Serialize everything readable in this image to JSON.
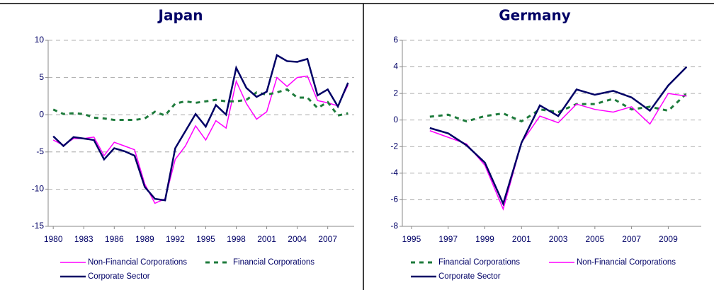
{
  "chart_data": [
    {
      "type": "line",
      "title": "Japan",
      "x": [
        1980,
        1981,
        1982,
        1983,
        1984,
        1985,
        1986,
        1987,
        1988,
        1989,
        1990,
        1991,
        1992,
        1993,
        1994,
        1995,
        1996,
        1997,
        1998,
        1999,
        2000,
        2001,
        2002,
        2003,
        2004,
        2005,
        2006,
        2007,
        2008,
        2009
      ],
      "series": [
        {
          "name": "Non-Financial Corporations",
          "color": "#ff00ff",
          "line_style": "solid",
          "values": [
            -3.4,
            -4.1,
            -3.2,
            -3.2,
            -3.0,
            -5.5,
            -3.7,
            -4.2,
            -4.7,
            -9.3,
            -11.9,
            -11.3,
            -6.0,
            -4.2,
            -1.5,
            -3.4,
            -0.8,
            -1.8,
            4.5,
            1.5,
            -0.6,
            0.4,
            5.0,
            3.8,
            5.0,
            5.2,
            1.9,
            1.6,
            1.2,
            4.0
          ]
        },
        {
          "name": "Financial Corporations",
          "color": "#1e7b3c",
          "line_style": "dashed",
          "values": [
            0.7,
            0.1,
            0.2,
            0.1,
            -0.4,
            -0.5,
            -0.7,
            -0.7,
            -0.7,
            -0.5,
            0.4,
            -0.1,
            1.5,
            1.8,
            1.6,
            1.8,
            2.0,
            1.8,
            1.8,
            2.0,
            3.0,
            2.7,
            3.0,
            3.4,
            2.3,
            2.3,
            0.9,
            1.7,
            -0.1,
            0.2
          ]
        },
        {
          "name": "Corporate Sector",
          "color": "#000066",
          "line_style": "solid",
          "values": [
            -2.9,
            -4.2,
            -3.0,
            -3.2,
            -3.4,
            -6.0,
            -4.5,
            -4.9,
            -5.5,
            -9.7,
            -11.3,
            -11.5,
            -4.5,
            -2.2,
            0.1,
            -1.6,
            1.3,
            0.0,
            6.3,
            3.6,
            2.4,
            3.1,
            8.0,
            7.2,
            7.1,
            7.5,
            2.6,
            3.4,
            1.1,
            4.3
          ]
        }
      ],
      "xlim": [
        1979.5,
        2009.6
      ],
      "xticks": [
        1980,
        1983,
        1986,
        1989,
        1992,
        1995,
        1998,
        2001,
        2004,
        2007
      ],
      "ylim": [
        -15,
        10
      ],
      "yticks": [
        -15,
        -10,
        -5,
        0,
        5,
        10
      ],
      "grid": true
    },
    {
      "type": "line",
      "title": "Germany",
      "x": [
        1996,
        1997,
        1998,
        1999,
        2000,
        2001,
        2002,
        2003,
        2004,
        2005,
        2006,
        2007,
        2008,
        2009,
        2010
      ],
      "series": [
        {
          "name": "Financial Corporations",
          "color": "#1e7b3c",
          "line_style": "dashed",
          "values": [
            0.25,
            0.4,
            -0.1,
            0.3,
            0.5,
            -0.1,
            0.8,
            0.6,
            1.2,
            1.2,
            1.6,
            0.8,
            1.0,
            0.7,
            2.0
          ]
        },
        {
          "name": "Non-Financial Corporations",
          "color": "#ff00ff",
          "line_style": "solid",
          "values": [
            -0.8,
            -1.3,
            -1.8,
            -3.4,
            -6.7,
            -1.7,
            0.3,
            -0.2,
            1.2,
            0.8,
            0.6,
            1.0,
            -0.3,
            2.0,
            1.8
          ]
        },
        {
          "name": "Corporate Sector",
          "color": "#000066",
          "line_style": "solid",
          "values": [
            -0.6,
            -1.0,
            -1.9,
            -3.2,
            -6.3,
            -1.7,
            1.1,
            0.3,
            2.3,
            1.9,
            2.2,
            1.7,
            0.7,
            2.6,
            4.0
          ]
        }
      ],
      "xlim": [
        1994.5,
        2010.8
      ],
      "xticks": [
        1995,
        1997,
        1999,
        2001,
        2003,
        2005,
        2007,
        2009
      ],
      "ylim": [
        -8,
        6
      ],
      "yticks": [
        -8,
        -6,
        -4,
        -2,
        0,
        2,
        4,
        6
      ],
      "grid": true
    }
  ]
}
